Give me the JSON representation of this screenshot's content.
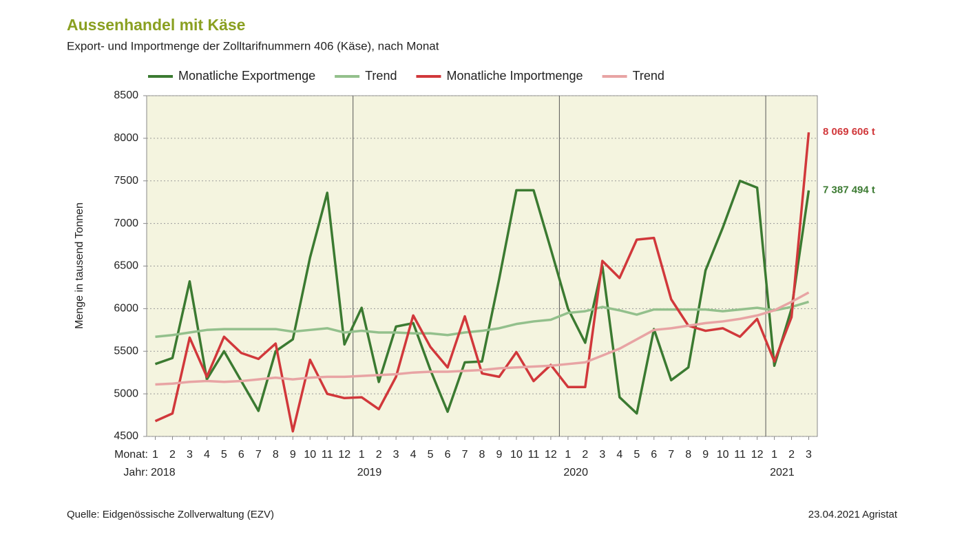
{
  "chart_data": {
    "type": "line",
    "title": "Aussenhandel mit Käse",
    "subtitle": "Export- und Importmenge der Zolltarifnummern 406 (Käse), nach Monat",
    "y_label": "Menge in tausend Tonnen",
    "x_row_label": "Monat:",
    "year_row_label": "Jahr:",
    "source": "Quelle: Eidgenössische Zollverwaltung (EZV)",
    "date_note": "23.04.2021 Agristat",
    "categories": [
      "1",
      "2",
      "3",
      "4",
      "5",
      "6",
      "7",
      "8",
      "9",
      "10",
      "11",
      "12",
      "1",
      "2",
      "3",
      "4",
      "5",
      "6",
      "7",
      "8",
      "9",
      "10",
      "11",
      "12",
      "1",
      "2",
      "3",
      "4",
      "5",
      "6",
      "7",
      "8",
      "9",
      "10",
      "11",
      "12",
      "1",
      "2",
      "3"
    ],
    "year_labels": [
      "2018",
      null,
      null,
      null,
      null,
      null,
      null,
      null,
      null,
      null,
      null,
      null,
      "2019",
      null,
      null,
      null,
      null,
      null,
      null,
      null,
      null,
      null,
      null,
      null,
      "2020",
      null,
      null,
      null,
      null,
      null,
      null,
      null,
      null,
      null,
      null,
      null,
      "2021",
      null,
      null
    ],
    "ylim": [
      4500,
      8500
    ],
    "yticks": [
      4500,
      5000,
      5500,
      6000,
      6500,
      7000,
      7500,
      8000,
      8500
    ],
    "grid": true,
    "background": "#f4f4df",
    "series": [
      {
        "name": "Monatliche Exportmenge",
        "color": "#3b7a31",
        "width": 3.5,
        "values": [
          5350,
          5420,
          6320,
          5170,
          5500,
          5150,
          4800,
          5500,
          5640,
          6600,
          7360,
          5580,
          6010,
          5140,
          5790,
          5830,
          5280,
          4790,
          5370,
          5380,
          6350,
          7390,
          7390,
          6700,
          6000,
          5600,
          6500,
          4960,
          4770,
          5760,
          5160,
          5310,
          6450,
          6950,
          7500,
          7420,
          5330,
          6000,
          7387.494
        ],
        "value_labels": [
          null,
          null,
          null,
          null,
          null,
          null,
          null,
          null,
          null,
          null,
          null,
          null,
          null,
          null,
          null,
          null,
          null,
          null,
          null,
          null,
          null,
          null,
          null,
          null,
          null,
          null,
          null,
          null,
          null,
          null,
          null,
          null,
          null,
          null,
          null,
          null,
          null,
          null,
          "7 387 494 t"
        ]
      },
      {
        "name": "Trend",
        "color": "#93c08c",
        "width": 3.5,
        "values": [
          5670,
          5690,
          5720,
          5750,
          5760,
          5760,
          5760,
          5760,
          5730,
          5750,
          5770,
          5720,
          5740,
          5720,
          5720,
          5710,
          5710,
          5690,
          5720,
          5740,
          5770,
          5820,
          5850,
          5870,
          5950,
          5970,
          6020,
          5980,
          5930,
          5990,
          5990,
          5990,
          5990,
          5970,
          5990,
          6010,
          5980,
          6020,
          6080
        ]
      },
      {
        "name": "Monatliche Importmenge",
        "color": "#d1383b",
        "width": 3.5,
        "values": [
          4680,
          4770,
          5660,
          5200,
          5670,
          5480,
          5410,
          5590,
          4560,
          5400,
          5000,
          4950,
          4960,
          4820,
          5200,
          5920,
          5550,
          5310,
          5910,
          5240,
          5200,
          5490,
          5150,
          5340,
          5080,
          5080,
          6560,
          6360,
          6810,
          6830,
          6110,
          5800,
          5740,
          5770,
          5670,
          5880,
          5380,
          5900,
          8069.606
        ],
        "value_labels": [
          null,
          null,
          null,
          null,
          null,
          null,
          null,
          null,
          null,
          null,
          null,
          null,
          null,
          null,
          null,
          null,
          null,
          null,
          null,
          null,
          null,
          null,
          null,
          null,
          null,
          null,
          null,
          null,
          null,
          null,
          null,
          null,
          null,
          null,
          null,
          null,
          null,
          null,
          "8 069 606 t"
        ]
      },
      {
        "name": "Trend",
        "color": "#e8a4a4",
        "width": 3.5,
        "values": [
          5110,
          5120,
          5140,
          5150,
          5140,
          5150,
          5170,
          5190,
          5170,
          5190,
          5200,
          5200,
          5210,
          5220,
          5230,
          5250,
          5260,
          5260,
          5270,
          5280,
          5300,
          5310,
          5320,
          5330,
          5350,
          5370,
          5450,
          5530,
          5640,
          5750,
          5770,
          5800,
          5830,
          5850,
          5880,
          5920,
          5980,
          6080,
          6190
        ]
      }
    ]
  }
}
